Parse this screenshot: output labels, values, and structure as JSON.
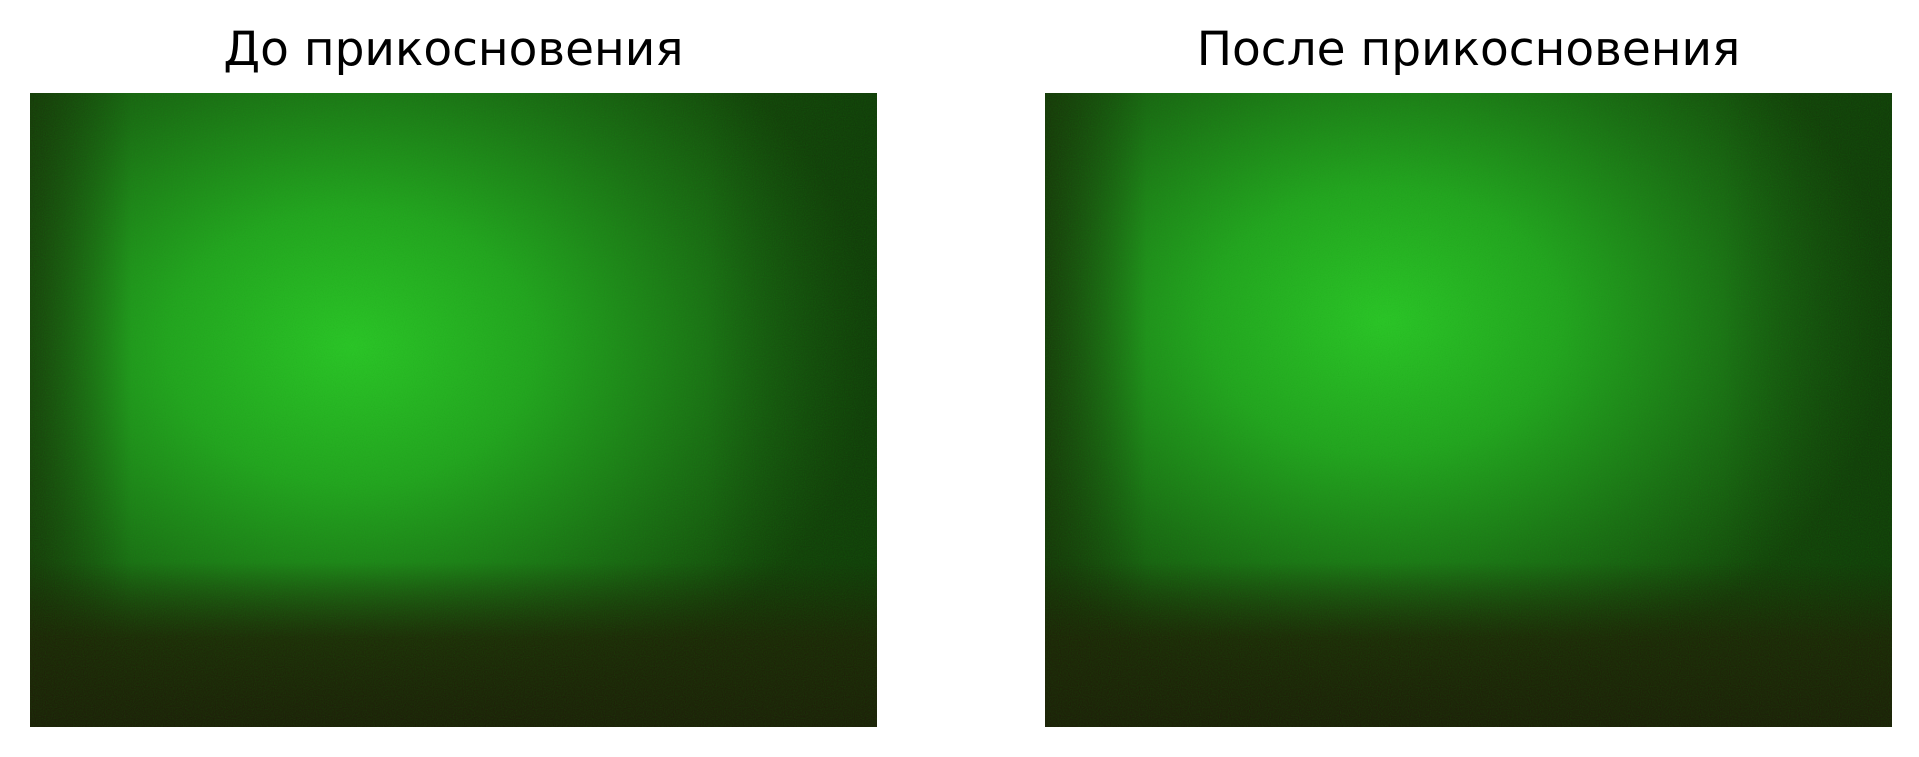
{
  "figure": {
    "panels": [
      {
        "title": "До прикосновения",
        "image": {
          "subject": "green-illuminated-surface",
          "colors": {
            "highlight": "#2fc52b",
            "mid": "#1f7a1a",
            "edge": "#183d0c",
            "bottom": "#211708"
          }
        }
      },
      {
        "title": "После прикосновения",
        "image": {
          "subject": "green-illuminated-surface",
          "colors": {
            "highlight": "#2fc52b",
            "mid": "#1f7a1a",
            "edge": "#183d0c",
            "bottom": "#211708"
          }
        }
      }
    ]
  }
}
